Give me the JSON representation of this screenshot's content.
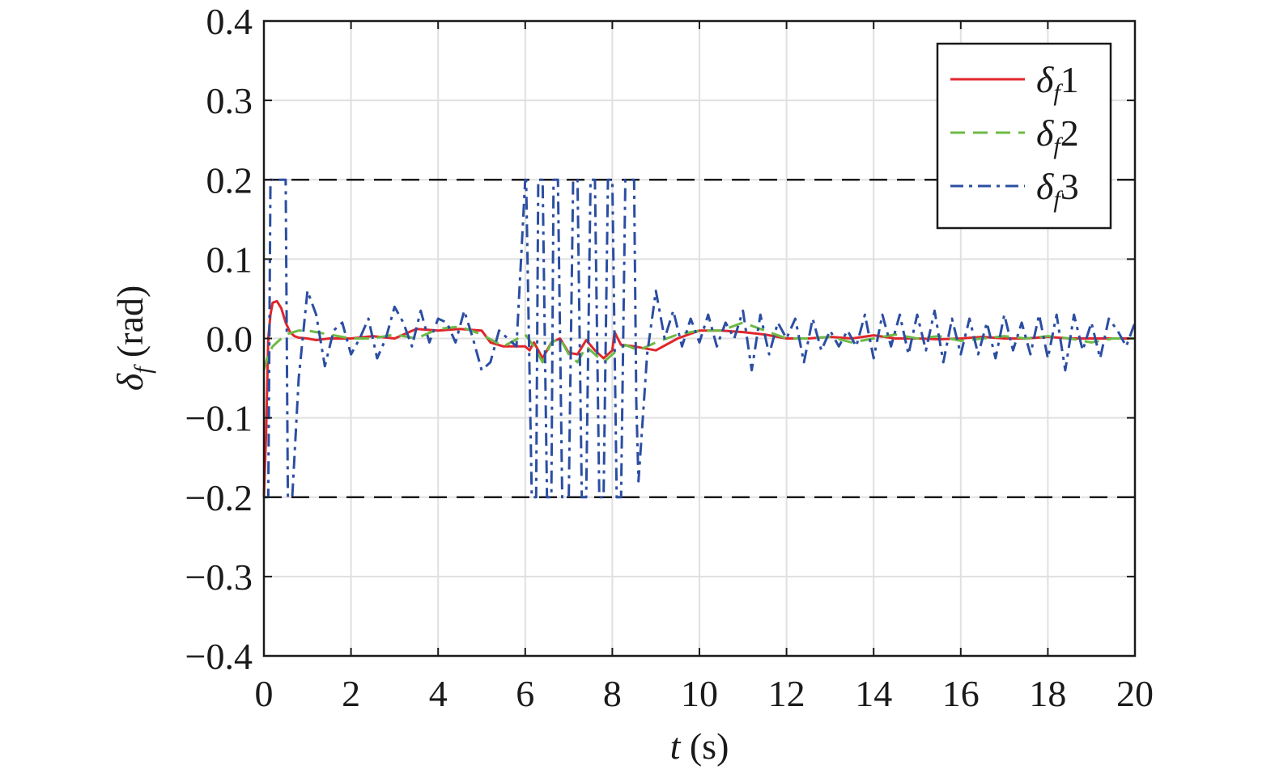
{
  "chart_data": {
    "type": "line",
    "title": "",
    "xlabel": {
      "symbol": "t",
      "unit": " (s)"
    },
    "ylabel": {
      "symbol": "δ",
      "subscript": "f",
      "unit": " (rad)"
    },
    "xlim": [
      0,
      20
    ],
    "ylim": [
      -0.4,
      0.4
    ],
    "xticks": [
      0,
      2,
      4,
      6,
      8,
      10,
      12,
      14,
      16,
      18,
      20
    ],
    "yticks": [
      0.4,
      0.3,
      0.2,
      0.1,
      0.0,
      -0.1,
      -0.2,
      -0.3,
      -0.4
    ],
    "xtick_labels": [
      "0",
      "2",
      "4",
      "6",
      "8",
      "10",
      "12",
      "14",
      "16",
      "18",
      "20"
    ],
    "ytick_labels": [
      "0.4",
      "0.3",
      "0.2",
      "0.1",
      "0.0",
      "−0.1",
      "−0.2",
      "−0.3",
      "−0.4"
    ],
    "grid": true,
    "legend_position": "top-right",
    "limit_lines": [
      0.2,
      -0.2
    ],
    "series": [
      {
        "name": "δf1",
        "label_symbol": "δ",
        "label_subscript": "f",
        "label_suffix": "1",
        "color": "#e0262b",
        "dash": "solid",
        "x": [
          0,
          0.05,
          0.1,
          0.15,
          0.2,
          0.3,
          0.4,
          0.5,
          0.6,
          0.7,
          0.8,
          1.0,
          1.2,
          1.5,
          2.0,
          2.5,
          3.0,
          3.5,
          4.0,
          4.5,
          5.0,
          5.2,
          5.5,
          6.0,
          6.1,
          6.2,
          6.4,
          6.6,
          6.8,
          7.0,
          7.2,
          7.4,
          7.6,
          7.8,
          8.0,
          8.05,
          8.2,
          8.5,
          9.0,
          9.5,
          10.0,
          10.5,
          11.0,
          11.5,
          12.0,
          12.5,
          13.0,
          13.5,
          14.0,
          14.5,
          15.0,
          15.5,
          16.0,
          16.5,
          17.0,
          17.5,
          18.0,
          18.5,
          19.0,
          19.5,
          20.0
        ],
        "y": [
          -0.2,
          -0.12,
          0.0,
          0.03,
          0.045,
          0.047,
          0.038,
          0.02,
          0.008,
          0.003,
          0.001,
          0.0,
          -0.002,
          0.0,
          0.0,
          0.003,
          0.0,
          0.012,
          0.01,
          0.012,
          0.01,
          -0.005,
          -0.01,
          -0.01,
          -0.015,
          -0.005,
          -0.025,
          -0.005,
          0.0,
          -0.018,
          -0.02,
          -0.002,
          -0.015,
          -0.025,
          -0.015,
          0.008,
          -0.008,
          -0.01,
          -0.015,
          0.0,
          0.01,
          0.01,
          0.008,
          0.005,
          0.0,
          0.0,
          0.002,
          0.0,
          0.004,
          0.0,
          0.0,
          -0.001,
          0.0,
          0.002,
          0.0,
          0.0,
          0.002,
          0.0,
          0.0,
          0.0,
          0.0
        ]
      },
      {
        "name": "δf2",
        "label_symbol": "δ",
        "label_subscript": "f",
        "label_suffix": "2",
        "color": "#6dba45",
        "dash": "dashed",
        "x": [
          0,
          0.1,
          0.2,
          0.3,
          0.5,
          0.8,
          1.0,
          1.5,
          2.0,
          2.5,
          3.0,
          3.5,
          4.0,
          4.5,
          5.0,
          5.5,
          6.0,
          6.2,
          6.4,
          6.6,
          6.8,
          7.0,
          7.2,
          7.4,
          7.6,
          7.8,
          8.0,
          8.3,
          8.6,
          9.0,
          9.5,
          10.0,
          10.5,
          11.0,
          11.5,
          12.0,
          12.5,
          13.0,
          13.5,
          14.0,
          14.5,
          15.0,
          15.5,
          16.0,
          16.5,
          17.0,
          17.5,
          18.0,
          18.5,
          19.0,
          19.5,
          20.0
        ],
        "y": [
          -0.04,
          -0.02,
          -0.01,
          -0.005,
          0.005,
          0.01,
          0.01,
          0.005,
          0.0,
          0.0,
          0.005,
          0.0,
          0.012,
          0.015,
          0.005,
          -0.01,
          0.005,
          -0.01,
          -0.03,
          -0.005,
          0.0,
          -0.02,
          -0.03,
          -0.01,
          -0.02,
          -0.03,
          -0.02,
          -0.008,
          -0.015,
          -0.005,
          0.005,
          0.01,
          0.01,
          0.02,
          0.01,
          0.0,
          0.0,
          0.002,
          -0.005,
          0.0,
          0.005,
          0.0,
          0.003,
          -0.003,
          0.0,
          0.003,
          0.0,
          0.003,
          0.0,
          -0.005,
          0.0,
          0.0
        ]
      },
      {
        "name": "δf3",
        "label_symbol": "δ",
        "label_subscript": "f",
        "label_suffix": "3",
        "color": "#2b4ea2",
        "dash": "dashdot",
        "x": [
          0,
          0.1,
          0.15,
          0.2,
          0.3,
          0.5,
          0.55,
          0.6,
          0.65,
          0.7,
          0.8,
          1.0,
          1.2,
          1.4,
          1.6,
          1.8,
          2.0,
          2.2,
          2.4,
          2.6,
          2.8,
          3.0,
          3.2,
          3.4,
          3.6,
          3.8,
          4.0,
          4.2,
          4.4,
          4.6,
          4.8,
          5.0,
          5.2,
          5.4,
          5.6,
          5.8,
          6.0,
          6.02,
          6.15,
          6.25,
          6.3,
          6.4,
          6.5,
          6.6,
          6.65,
          6.75,
          6.85,
          7.0,
          7.1,
          7.2,
          7.3,
          7.4,
          7.5,
          7.6,
          7.7,
          7.8,
          7.9,
          8.0,
          8.1,
          8.2,
          8.3,
          8.4,
          8.5,
          8.55,
          8.6,
          8.7,
          8.8,
          9.0,
          9.2,
          9.4,
          9.6,
          9.8,
          10.0,
          10.2,
          10.4,
          10.6,
          10.8,
          11.0,
          11.2,
          11.4,
          11.6,
          11.8,
          12.0,
          12.2,
          12.4,
          12.6,
          12.8,
          13.0,
          13.2,
          13.4,
          13.6,
          13.8,
          14.0,
          14.2,
          14.4,
          14.6,
          14.8,
          15.0,
          15.2,
          15.4,
          15.6,
          15.8,
          16.0,
          16.2,
          16.4,
          16.6,
          16.8,
          17.0,
          17.2,
          17.4,
          17.6,
          17.8,
          18.0,
          18.2,
          18.4,
          18.6,
          18.8,
          19.0,
          19.2,
          19.4,
          19.6,
          19.8,
          20.0
        ],
        "y": [
          -0.2,
          -0.2,
          0.2,
          0.2,
          0.2,
          0.2,
          -0.2,
          -0.2,
          -0.2,
          -0.15,
          -0.05,
          0.06,
          0.03,
          -0.035,
          0.01,
          0.02,
          -0.02,
          0.0,
          0.025,
          -0.025,
          0.0,
          0.04,
          0.02,
          -0.01,
          0.035,
          -0.005,
          0.025,
          0.02,
          -0.005,
          0.035,
          0.0,
          -0.04,
          -0.03,
          0.01,
          0.0,
          -0.01,
          0.2,
          0.2,
          -0.2,
          -0.2,
          0.2,
          0.2,
          -0.2,
          -0.2,
          0.2,
          0.2,
          -0.2,
          -0.2,
          0.2,
          0.2,
          -0.2,
          -0.2,
          0.2,
          0.2,
          -0.2,
          -0.2,
          0.2,
          0.2,
          -0.2,
          -0.2,
          0.2,
          0.2,
          0.2,
          -0.08,
          -0.18,
          -0.1,
          -0.02,
          0.06,
          0.0,
          0.035,
          -0.01,
          0.025,
          -0.005,
          0.03,
          -0.01,
          0.02,
          0.0,
          0.035,
          -0.04,
          0.03,
          -0.02,
          0.02,
          0.0,
          0.025,
          -0.03,
          0.025,
          -0.015,
          0.01,
          -0.01,
          0.01,
          -0.01,
          0.03,
          -0.025,
          0.03,
          -0.01,
          0.03,
          -0.02,
          0.03,
          -0.015,
          0.035,
          -0.03,
          0.025,
          -0.02,
          0.025,
          -0.02,
          0.02,
          -0.025,
          0.03,
          -0.015,
          0.02,
          -0.02,
          0.03,
          -0.025,
          0.03,
          -0.04,
          0.03,
          -0.015,
          0.02,
          -0.025,
          0.025,
          0.01,
          -0.01,
          0.02
        ]
      }
    ]
  }
}
